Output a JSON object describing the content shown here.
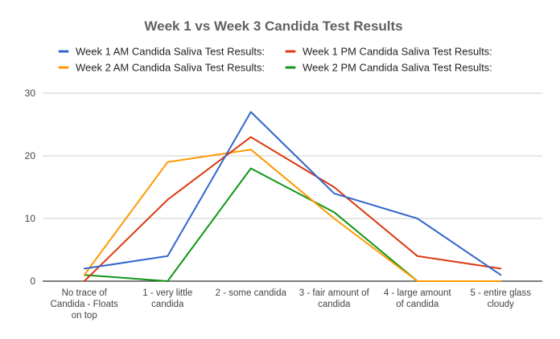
{
  "chart_data": {
    "type": "line",
    "title": "Week 1 vs Week 3 Candida Test Results",
    "xlabel": "",
    "ylabel": "",
    "ylim": [
      0,
      30
    ],
    "yticks": [
      0,
      10,
      20,
      30
    ],
    "grid": true,
    "legend_position": "top",
    "categories": [
      [
        "No trace of",
        "Candida - Floats",
        "on top"
      ],
      [
        "1 - very little",
        "candida"
      ],
      [
        "2 - some candida"
      ],
      [
        "3 - fair amount of",
        "candida"
      ],
      [
        "4 - large amount",
        "of candida"
      ],
      [
        "5 - entire glass",
        "cloudy"
      ]
    ],
    "series": [
      {
        "name": "Week 1 AM Candida Saliva Test Results:",
        "color": "#3366cc",
        "values": [
          2,
          4,
          27,
          14,
          10,
          1
        ]
      },
      {
        "name": "Week 1 PM Candida Saliva Test Results:",
        "color": "#dc3912",
        "values": [
          0,
          13,
          23,
          15,
          4,
          2
        ]
      },
      {
        "name": "Week 2 AM Candida Saliva Test Results:",
        "color": "#ff9900",
        "values": [
          1,
          19,
          21,
          10,
          0,
          0
        ]
      },
      {
        "name": "Week 2 PM Candida Saliva Test Results:",
        "color": "#109618",
        "values": [
          1,
          0,
          18,
          11,
          0,
          0
        ]
      }
    ]
  }
}
